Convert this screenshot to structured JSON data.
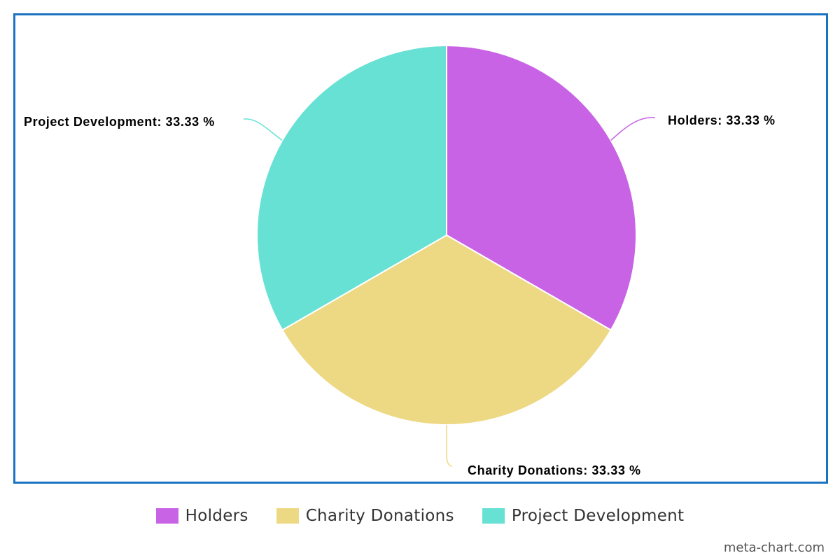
{
  "chart_data": {
    "type": "pie",
    "slices": [
      {
        "label": "Holders",
        "value": 33.33,
        "color": "#c963e6",
        "data_label": "Holders: 33.33 %"
      },
      {
        "label": "Charity Donations",
        "value": 33.33,
        "color": "#edd883",
        "data_label": "Charity Donations: 33.33 %"
      },
      {
        "label": "Project Development",
        "value": 33.33,
        "color": "#67e1d4",
        "data_label": "Project Development: 33.33 %"
      }
    ],
    "legend_placement": "bottom",
    "start_angle": "top, clockwise"
  },
  "legend": {
    "items": [
      {
        "label": "Holders",
        "color": "#c963e6"
      },
      {
        "label": "Charity Donations",
        "color": "#edd883"
      },
      {
        "label": "Project Development",
        "color": "#67e1d4"
      }
    ]
  },
  "watermark": "meta-chart.com",
  "frame_border_color": "#1a73c0"
}
